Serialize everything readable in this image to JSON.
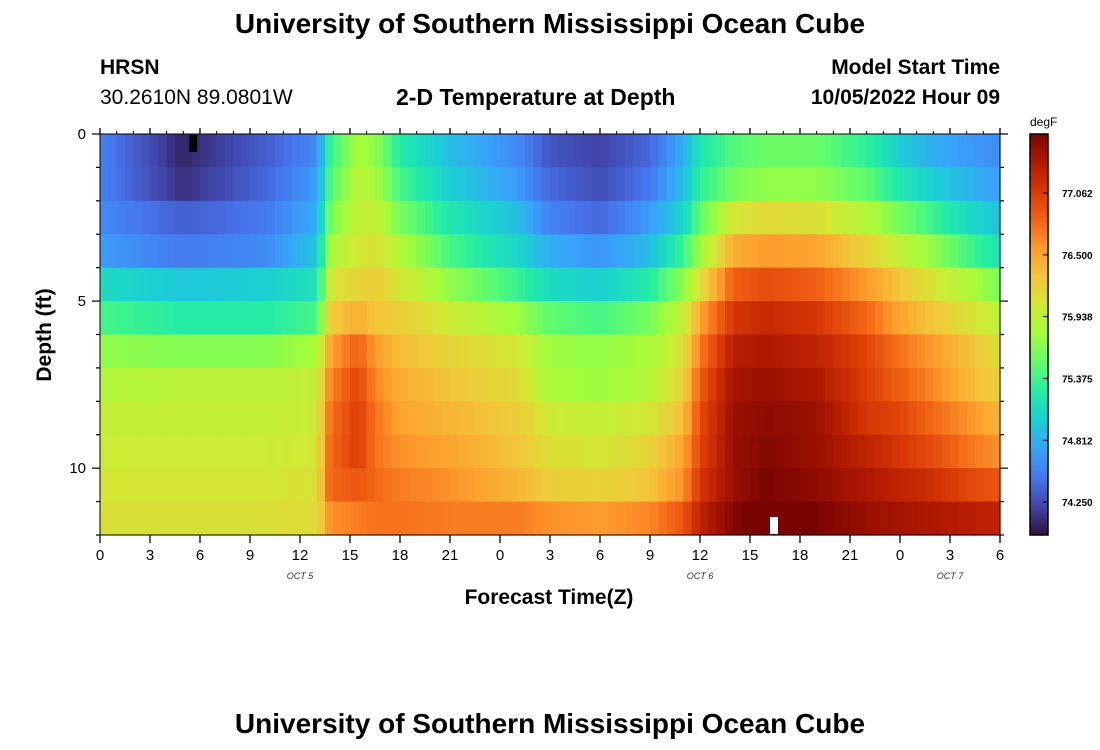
{
  "page": {
    "title_top": "University of Southern Mississippi Ocean Cube",
    "title_bottom": "University of Southern Mississippi Ocean Cube",
    "station_name": "HRSN",
    "station_coords": "30.2610N  89.0801W",
    "model_start_label": "Model Start Time",
    "model_start_time": "10/05/2022 Hour 09"
  },
  "colors": {
    "palette": [
      "#30123b",
      "#4145ab",
      "#4675ed",
      "#39a2fc",
      "#1bcfd4",
      "#24eca6",
      "#61fc6c",
      "#a4fc3b",
      "#d1e834",
      "#f3c63a",
      "#fe9b2d",
      "#f36315",
      "#d93806",
      "#b11901",
      "#7a0402"
    ]
  },
  "chart_data": {
    "type": "heatmap",
    "title": "2-D Temperature at Depth",
    "xlabel": "Forecast Time(Z)",
    "ylabel": "Depth (ft)",
    "colorbar_label": "degF",
    "x_tick_labels": [
      "0",
      "3",
      "6",
      "9",
      "12",
      "15",
      "18",
      "21",
      "0",
      "3",
      "6",
      "9",
      "12",
      "15",
      "18",
      "21",
      "0",
      "3",
      "6"
    ],
    "x_range_hours": [
      0,
      54
    ],
    "date_labels": [
      {
        "text": "OCT 5",
        "hour": 12
      },
      {
        "text": "OCT 6",
        "hour": 36
      },
      {
        "text": "OCT 7",
        "hour": 51
      }
    ],
    "y_tick_labels": [
      {
        "value": 0,
        "label": "0"
      },
      {
        "value": 5,
        "label": "5"
      },
      {
        "value": 10,
        "label": "10"
      }
    ],
    "ylim": [
      12,
      0
    ],
    "depths_ft": [
      0.5,
      1.5,
      2.5,
      3.5,
      4.5,
      5.5,
      6.5,
      7.5,
      8.5,
      9.5,
      10.5,
      11.5
    ],
    "colorbar_ticks": [
      77.062,
      76.5,
      75.938,
      75.375,
      74.812,
      74.25
    ],
    "colorbar_tick_labels": [
      "77.062",
      "76.500",
      "75.938",
      "75.375",
      "74.812",
      "74.250"
    ],
    "color_range": [
      73.95,
      77.6
    ],
    "time_knots_hours": [
      0,
      5,
      10,
      13,
      13.8,
      15.5,
      16.5,
      18,
      21,
      25,
      27,
      30,
      33,
      35,
      36,
      38,
      40,
      43,
      46,
      48,
      50,
      52,
      54
    ],
    "values": [
      [
        74.55,
        74.05,
        74.35,
        74.6,
        75.35,
        75.8,
        75.7,
        75.25,
        74.9,
        74.6,
        74.3,
        74.2,
        74.4,
        74.8,
        75.2,
        75.45,
        75.55,
        75.55,
        75.3,
        75.0,
        74.8,
        74.7,
        74.6
      ],
      [
        74.55,
        74.1,
        74.4,
        74.7,
        75.45,
        75.9,
        75.8,
        75.4,
        75.0,
        74.7,
        74.4,
        74.25,
        74.5,
        74.9,
        75.3,
        75.6,
        75.7,
        75.7,
        75.5,
        75.2,
        75.0,
        74.85,
        74.7
      ],
      [
        74.6,
        74.35,
        74.5,
        74.8,
        75.6,
        75.95,
        75.95,
        75.6,
        75.2,
        74.9,
        74.55,
        74.4,
        74.7,
        75.05,
        75.5,
        76.05,
        76.15,
        76.1,
        75.85,
        75.6,
        75.35,
        75.1,
        74.9
      ],
      [
        74.7,
        74.5,
        74.6,
        74.95,
        75.8,
        76.05,
        76.1,
        75.85,
        75.4,
        75.05,
        74.8,
        74.65,
        74.9,
        75.35,
        75.75,
        76.45,
        76.55,
        76.5,
        76.2,
        75.95,
        75.7,
        75.4,
        75.15
      ],
      [
        75.1,
        74.95,
        75.0,
        75.15,
        76.05,
        76.2,
        76.25,
        76.05,
        75.7,
        75.35,
        75.1,
        75.0,
        75.25,
        75.7,
        76.1,
        76.85,
        76.95,
        76.85,
        76.55,
        76.3,
        76.05,
        75.85,
        75.6
      ],
      [
        75.4,
        75.25,
        75.25,
        75.4,
        76.25,
        76.45,
        76.3,
        76.25,
        76.0,
        75.75,
        75.5,
        75.4,
        75.6,
        75.95,
        76.5,
        77.1,
        77.2,
        77.1,
        76.8,
        76.5,
        76.3,
        76.1,
        75.9
      ],
      [
        75.7,
        75.65,
        75.65,
        75.8,
        76.5,
        76.85,
        76.55,
        76.35,
        76.2,
        76.05,
        75.75,
        75.7,
        75.8,
        76.1,
        76.7,
        77.3,
        77.35,
        77.25,
        77.0,
        76.75,
        76.55,
        76.35,
        76.1
      ],
      [
        75.85,
        75.9,
        75.9,
        75.95,
        76.65,
        77.0,
        76.65,
        76.45,
        76.3,
        76.15,
        75.8,
        75.75,
        75.85,
        76.2,
        76.85,
        77.4,
        77.45,
        77.35,
        77.05,
        76.85,
        76.65,
        76.4,
        76.2
      ],
      [
        75.95,
        75.95,
        75.95,
        76.0,
        76.75,
        77.05,
        76.75,
        76.5,
        76.4,
        76.25,
        76.0,
        75.95,
        76.05,
        76.35,
        76.95,
        77.45,
        77.5,
        77.45,
        77.1,
        77.0,
        76.8,
        76.6,
        76.4
      ],
      [
        76.0,
        76.0,
        76.0,
        76.05,
        76.8,
        77.05,
        76.75,
        76.6,
        76.5,
        76.3,
        76.1,
        76.05,
        76.2,
        76.5,
        77.0,
        77.45,
        77.55,
        77.45,
        77.25,
        77.1,
        76.95,
        76.75,
        76.6
      ],
      [
        76.05,
        76.05,
        76.05,
        76.1,
        76.8,
        76.9,
        76.8,
        76.7,
        76.6,
        76.4,
        76.25,
        76.2,
        76.3,
        76.6,
        77.1,
        77.45,
        77.6,
        77.5,
        77.35,
        77.25,
        77.15,
        77.0,
        76.9
      ],
      [
        76.1,
        76.1,
        76.1,
        76.15,
        76.6,
        76.7,
        76.75,
        76.75,
        76.7,
        76.7,
        76.6,
        76.55,
        76.65,
        76.9,
        77.25,
        77.55,
        77.7,
        77.6,
        77.45,
        77.4,
        77.35,
        77.3,
        77.25
      ]
    ]
  }
}
